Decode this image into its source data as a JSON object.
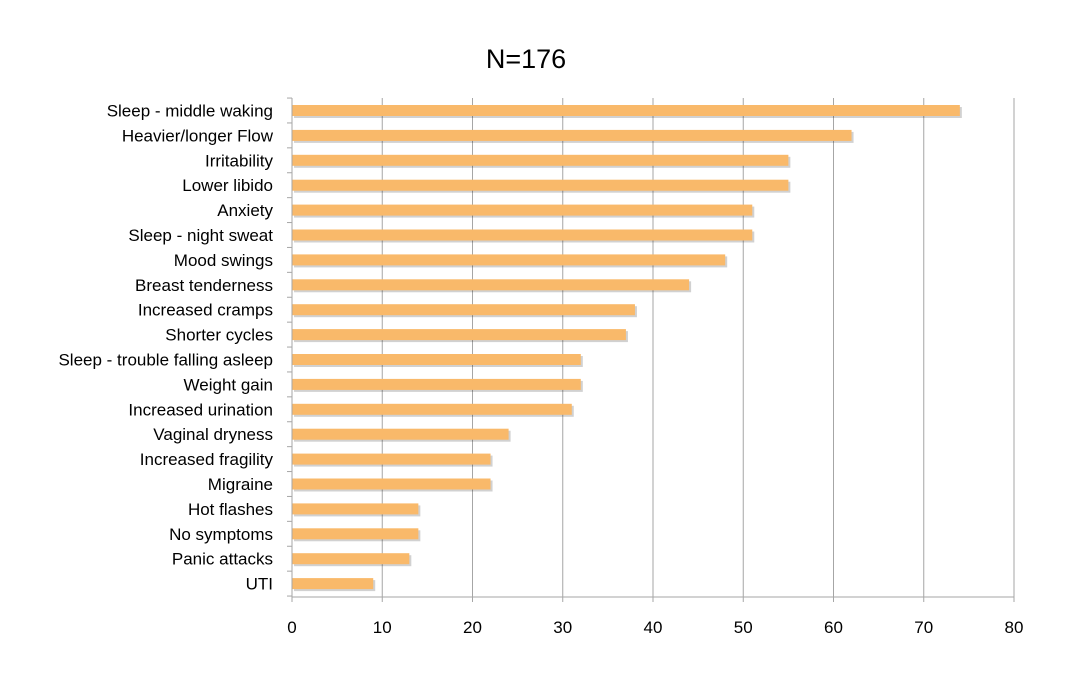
{
  "chart_data": {
    "type": "bar",
    "orientation": "horizontal",
    "title": "N=176",
    "xlabel": "",
    "ylabel": "",
    "categories": [
      "Sleep - middle waking",
      "Heavier/longer Flow",
      "Irritability",
      "Lower libido",
      "Anxiety",
      "Sleep - night sweat",
      "Mood swings",
      "Breast tenderness",
      "Increased cramps",
      "Shorter cycles",
      "Sleep - trouble falling asleep",
      "Weight gain",
      "Increased urination",
      "Vaginal dryness",
      "Increased fragility",
      "Migraine",
      "Hot flashes",
      "No symptoms",
      "Panic attacks",
      "UTI"
    ],
    "values": [
      74,
      62,
      55,
      55,
      51,
      51,
      48,
      44,
      38,
      37,
      32,
      32,
      31,
      24,
      22,
      22,
      14,
      14,
      13,
      9
    ],
    "xlim": [
      0,
      80
    ],
    "xticks": [
      "0",
      "10",
      "20",
      "30",
      "40",
      "50",
      "60",
      "70",
      "80"
    ],
    "grid": true,
    "legend": "none",
    "bar_color": "#f9b96a",
    "grid_color": "#a6a6a6"
  }
}
